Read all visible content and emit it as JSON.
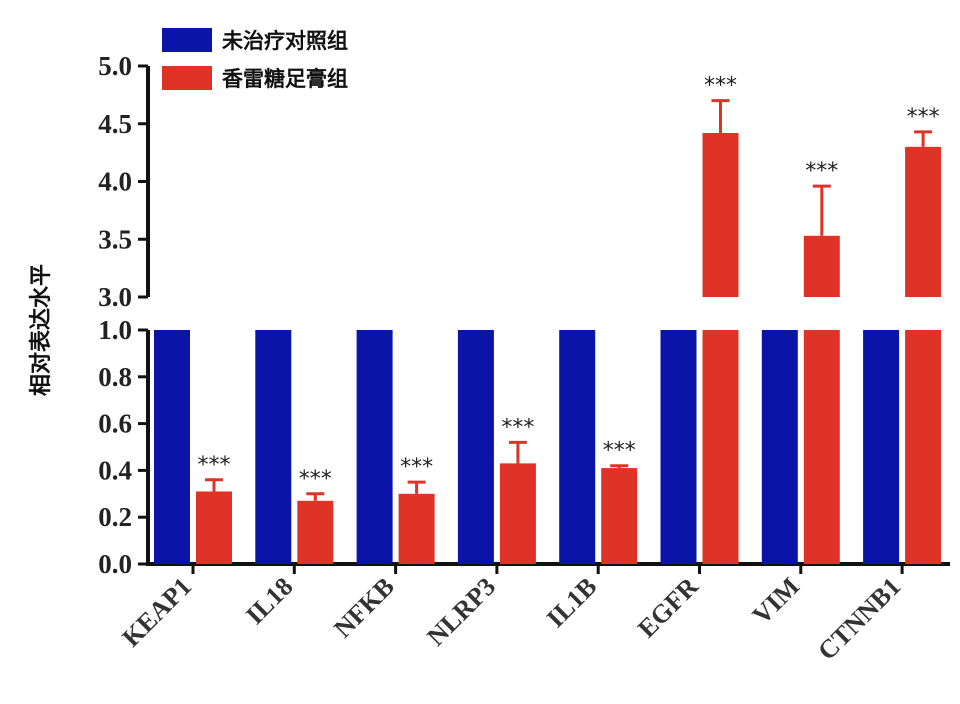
{
  "chart_data": {
    "type": "bar",
    "title": "",
    "xlabel": "",
    "ylabel": "相对表达水平",
    "categories": [
      "KEAP1",
      "IL18",
      "NFKB",
      "NLRP3",
      "IL1B",
      "EGFR",
      "VIM",
      "CTNNB1"
    ],
    "series": [
      {
        "name": "未治疗对照组",
        "color": "#0a14a8",
        "values": [
          1.0,
          1.0,
          1.0,
          1.0,
          1.0,
          1.0,
          1.0,
          1.0
        ]
      },
      {
        "name": "香雷糖足膏组",
        "color": "#e03327",
        "values": [
          0.31,
          0.27,
          0.3,
          0.43,
          0.41,
          4.42,
          3.53,
          4.3
        ],
        "error_upper": [
          0.36,
          0.3,
          0.35,
          0.52,
          0.42,
          4.7,
          3.96,
          4.43
        ],
        "significance": [
          "***",
          "***",
          "***",
          "***",
          "***",
          "***",
          "***",
          "***"
        ]
      }
    ],
    "y_axis_broken": true,
    "lower_segment": {
      "ylim": [
        0.0,
        1.0
      ],
      "ticks": [
        "0.0",
        "0.2",
        "0.4",
        "0.6",
        "0.8",
        "1.0"
      ]
    },
    "upper_segment": {
      "ylim": [
        3.0,
        5.0
      ],
      "ticks": [
        "3.0",
        "3.5",
        "4.0",
        "4.5",
        "5.0"
      ]
    },
    "legend_position": "top-left",
    "grid": false
  }
}
